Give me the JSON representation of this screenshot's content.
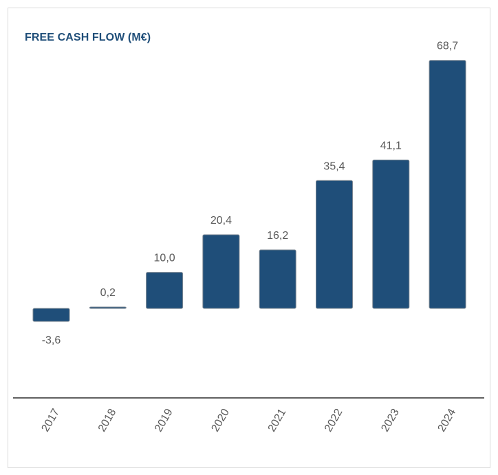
{
  "chart_data": {
    "type": "bar",
    "title": "FREE CASH FLOW (M€)",
    "categories": [
      "2017",
      "2018",
      "2019",
      "2020",
      "2021",
      "2022",
      "2023",
      "2024"
    ],
    "values": [
      -3.6,
      0.2,
      10.0,
      20.4,
      16.2,
      35.4,
      41.1,
      68.7
    ],
    "value_labels": [
      "-3,6",
      "0,2",
      "10,0",
      "20,4",
      "16,2",
      "35,4",
      "41,1",
      "68,7"
    ],
    "xlabel": "",
    "ylabel": "",
    "ylim": [
      -25,
      75
    ],
    "bar_color": "#1f4e79",
    "grid": false
  }
}
